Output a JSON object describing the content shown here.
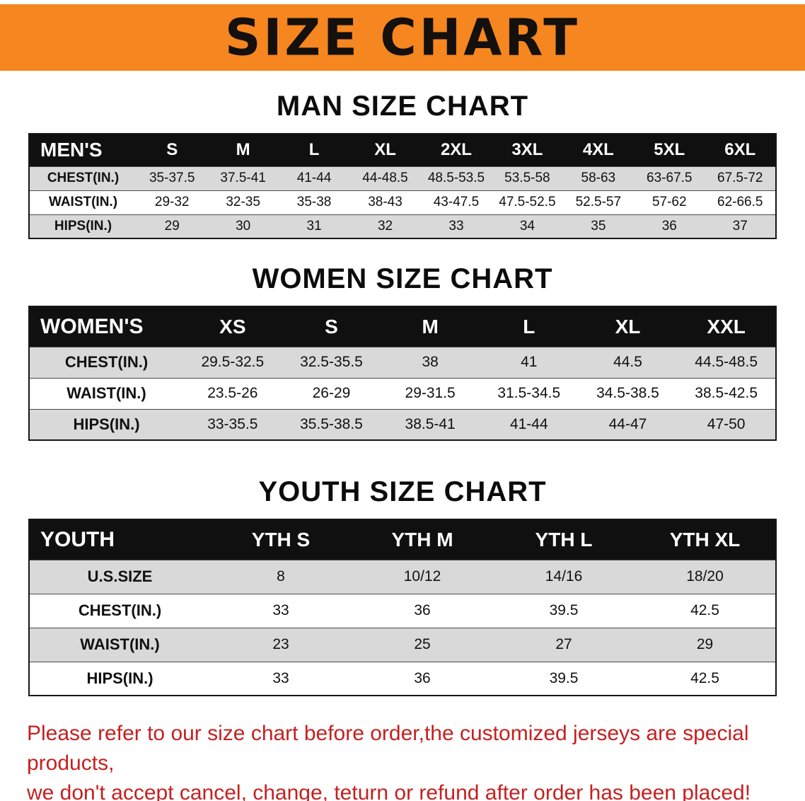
{
  "banner": {
    "title": "SIZE CHART"
  },
  "colors": {
    "banner_bg": "#f6861f",
    "header_bg": "#101010",
    "row_alt_bg": "#d9d9d9",
    "notice_text": "#c42120"
  },
  "sections": [
    {
      "title": "MAN SIZE CHART",
      "table": {
        "header": [
          "MEN'S",
          "S",
          "M",
          "L",
          "XL",
          "2XL",
          "3XL",
          "4XL",
          "5XL",
          "6XL"
        ],
        "rows": [
          [
            "CHEST(IN.)",
            "35-37.5",
            "37.5-41",
            "41-44",
            "44-48.5",
            "48.5-53.5",
            "53.5-58",
            "58-63",
            "63-67.5",
            "67.5-72"
          ],
          [
            "WAIST(IN.)",
            "29-32",
            "32-35",
            "35-38",
            "38-43",
            "43-47.5",
            "47.5-52.5",
            "52.5-57",
            "57-62",
            "62-66.5"
          ],
          [
            "HIPS(IN.)",
            "29",
            "30",
            "31",
            "32",
            "33",
            "34",
            "35",
            "36",
            "37"
          ]
        ]
      }
    },
    {
      "title": "WOMEN SIZE CHART",
      "table": {
        "header": [
          "WOMEN'S",
          "XS",
          "S",
          "M",
          "L",
          "XL",
          "XXL"
        ],
        "rows": [
          [
            "CHEST(IN.)",
            "29.5-32.5",
            "32.5-35.5",
            "38",
            "41",
            "44.5",
            "44.5-48.5"
          ],
          [
            "WAIST(IN.)",
            "23.5-26",
            "26-29",
            "29-31.5",
            "31.5-34.5",
            "34.5-38.5",
            "38.5-42.5"
          ],
          [
            "HIPS(IN.)",
            "33-35.5",
            "35.5-38.5",
            "38.5-41",
            "41-44",
            "44-47",
            "47-50"
          ]
        ]
      }
    },
    {
      "title": "YOUTH SIZE CHART",
      "table": {
        "header": [
          "YOUTH",
          "YTH S",
          "YTH M",
          "YTH L",
          "YTH XL"
        ],
        "rows": [
          [
            "U.S.SIZE",
            "8",
            "10/12",
            "14/16",
            "18/20"
          ],
          [
            "CHEST(IN.)",
            "33",
            "36",
            "39.5",
            "42.5"
          ],
          [
            "WAIST(IN.)",
            "23",
            "25",
            "27",
            "29"
          ],
          [
            "HIPS(IN.)",
            "33",
            "36",
            "39.5",
            "42.5"
          ]
        ]
      }
    }
  ],
  "footer": {
    "line1": "Please refer to our size chart before order,the customized jerseys are special products,",
    "line2": "we don't accept cancel, change, teturn or refund after order has been placed!"
  }
}
